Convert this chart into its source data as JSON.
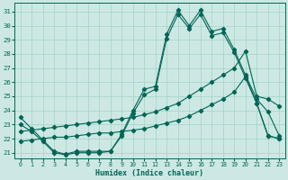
{
  "xlabel": "Humidex (Indice chaleur)",
  "bg_color": "#cde8e4",
  "grid_color": "#a8d5cc",
  "line_color": "#006655",
  "ylim": [
    20.6,
    31.6
  ],
  "xlim": [
    -0.5,
    23.5
  ],
  "yticks": [
    21,
    22,
    23,
    24,
    25,
    26,
    27,
    28,
    29,
    30,
    31
  ],
  "xticks": [
    0,
    1,
    2,
    3,
    4,
    5,
    6,
    7,
    8,
    9,
    10,
    11,
    12,
    13,
    14,
    15,
    16,
    17,
    18,
    19,
    20,
    21,
    22,
    23
  ],
  "line1_x": [
    0,
    1,
    2,
    3,
    4,
    5,
    6,
    7,
    8,
    9,
    10,
    11,
    12,
    13,
    14,
    15,
    16,
    17,
    18,
    19,
    20,
    21,
    22,
    23
  ],
  "line1_y": [
    23.5,
    22.7,
    21.9,
    21.1,
    20.9,
    21.1,
    21.1,
    21.1,
    21.1,
    22.3,
    24.0,
    25.5,
    25.7,
    29.4,
    31.1,
    30.0,
    31.1,
    29.6,
    29.8,
    28.3,
    26.5,
    24.8,
    23.9,
    22.2
  ],
  "line2_x": [
    0,
    1,
    2,
    3,
    4,
    5,
    6,
    7,
    8,
    9,
    10,
    11,
    12,
    13,
    14,
    15,
    16,
    17,
    18,
    19,
    20,
    21,
    22,
    23
  ],
  "line2_y": [
    23.0,
    22.5,
    21.8,
    21.0,
    20.85,
    21.0,
    21.0,
    21.0,
    21.1,
    22.2,
    23.8,
    25.1,
    25.5,
    29.1,
    30.8,
    29.8,
    30.8,
    29.3,
    29.5,
    28.1,
    26.3,
    24.5,
    22.2,
    22.0
  ],
  "line3_x": [
    0,
    1,
    2,
    3,
    4,
    5,
    6,
    7,
    8,
    9,
    10,
    11,
    12,
    13,
    14,
    15,
    16,
    17,
    18,
    19,
    20,
    21,
    22,
    23
  ],
  "line3_y": [
    22.5,
    22.6,
    22.7,
    22.8,
    22.9,
    23.0,
    23.1,
    23.2,
    23.3,
    23.4,
    23.5,
    23.7,
    23.9,
    24.2,
    24.5,
    25.0,
    25.5,
    26.0,
    26.5,
    27.0,
    28.2,
    25.0,
    24.8,
    24.3
  ],
  "line4_x": [
    0,
    1,
    2,
    3,
    4,
    5,
    6,
    7,
    8,
    9,
    10,
    11,
    12,
    13,
    14,
    15,
    16,
    17,
    18,
    19,
    20,
    21,
    22,
    23
  ],
  "line4_y": [
    21.8,
    21.9,
    22.0,
    22.1,
    22.1,
    22.2,
    22.3,
    22.4,
    22.4,
    22.5,
    22.6,
    22.7,
    22.9,
    23.1,
    23.3,
    23.6,
    24.0,
    24.4,
    24.8,
    25.3,
    26.4,
    24.5,
    22.2,
    22.0
  ]
}
